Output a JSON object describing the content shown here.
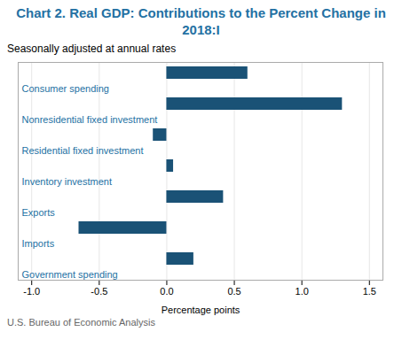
{
  "chart_data": {
    "type": "bar",
    "orientation": "horizontal",
    "title": "Chart 2. Real GDP: Contributions to the Percent Change in 2018:I",
    "subtitle": "Seasonally adjusted at annual rates",
    "xlabel": "Percentage points",
    "caption": "U.S. Bureau of Economic Analysis",
    "categories": [
      "Consumer spending",
      "Nonresidential fixed investment",
      "Residential fixed investment",
      "Inventory investment",
      "Exports",
      "Imports",
      "Government spending"
    ],
    "values": [
      0.6,
      1.3,
      -0.1,
      0.05,
      0.42,
      -0.65,
      0.2
    ],
    "color": "#1a5276",
    "xlim": [
      -1.1,
      1.6
    ],
    "xticks": [
      {
        "value": -1.0,
        "label": "-1.0"
      },
      -0.5,
      {
        "value": 0.0,
        "label": "0.0"
      },
      0.5,
      {
        "value": 1.0,
        "label": "1.0"
      },
      1.5
    ],
    "grid": true
  }
}
